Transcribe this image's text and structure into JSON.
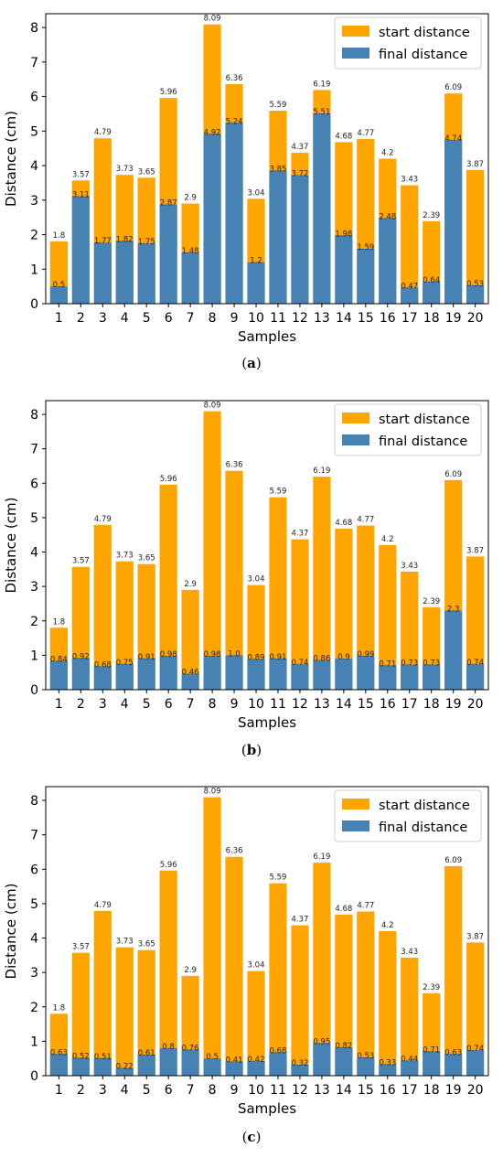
{
  "colors": {
    "start": "#FFA500",
    "final": "#4682B4"
  },
  "chart_data": [
    {
      "type": "bar",
      "caption": "a",
      "xlabel": "Samples",
      "ylabel": "Distance (cm)",
      "ylim": [
        0,
        8.4
      ],
      "yticks": [
        0,
        1,
        2,
        3,
        4,
        5,
        6,
        7,
        8
      ],
      "legend_position": "top-right",
      "categories": [
        "1",
        "2",
        "3",
        "4",
        "5",
        "6",
        "7",
        "8",
        "9",
        "10",
        "11",
        "12",
        "13",
        "14",
        "15",
        "16",
        "17",
        "18",
        "19",
        "20"
      ],
      "series": [
        {
          "name": "start distance",
          "values": [
            1.8,
            3.57,
            4.79,
            3.73,
            3.65,
            5.96,
            2.9,
            8.09,
            6.36,
            3.04,
            5.59,
            4.37,
            6.19,
            4.68,
            4.77,
            4.2,
            3.43,
            2.39,
            6.09,
            3.87
          ],
          "labels": [
            "1.8",
            "3.57",
            "4.79",
            "3.73",
            "3.65",
            "5.96",
            "2.9",
            "8.09",
            "6.36",
            "3.04",
            "5.59",
            "4.37",
            "6.19",
            "4.68",
            "4.77",
            "4.2",
            "3.43",
            "2.39",
            "6.09",
            "3.87"
          ]
        },
        {
          "name": "final distance",
          "values": [
            0.5,
            3.11,
            1.77,
            1.82,
            1.75,
            2.87,
            1.48,
            4.92,
            5.24,
            1.2,
            3.85,
            3.72,
            5.51,
            1.98,
            1.59,
            2.48,
            0.47,
            0.64,
            4.74,
            0.53
          ],
          "labels": [
            "0.5",
            "3.11",
            "1.77",
            "1.82",
            "1.75",
            "2.87",
            "1.48",
            "4.92",
            "5.24",
            "1.2",
            "3.85",
            "3.72",
            "5.51",
            "1.98",
            "1.59",
            "2.48",
            "0.47",
            "0.64",
            "4.74",
            "0.53"
          ]
        }
      ]
    },
    {
      "type": "bar",
      "caption": "b",
      "xlabel": "Samples",
      "ylabel": "Distance (cm)",
      "ylim": [
        0,
        8.4
      ],
      "yticks": [
        0,
        1,
        2,
        3,
        4,
        5,
        6,
        7,
        8
      ],
      "legend_position": "top-right",
      "categories": [
        "1",
        "2",
        "3",
        "4",
        "5",
        "6",
        "7",
        "8",
        "9",
        "10",
        "11",
        "12",
        "13",
        "14",
        "15",
        "16",
        "17",
        "18",
        "19",
        "20"
      ],
      "series": [
        {
          "name": "start distance",
          "values": [
            1.8,
            3.57,
            4.79,
            3.73,
            3.65,
            5.96,
            2.9,
            8.09,
            6.36,
            3.04,
            5.59,
            4.37,
            6.19,
            4.68,
            4.77,
            4.2,
            3.43,
            2.39,
            6.09,
            3.87
          ],
          "labels": [
            "1.8",
            "3.57",
            "4.79",
            "3.73",
            "3.65",
            "5.96",
            "2.9",
            "8.09",
            "6.36",
            "3.04",
            "5.59",
            "4.37",
            "6.19",
            "4.68",
            "4.77",
            "4.2",
            "3.43",
            "2.39",
            "6.09",
            "3.87"
          ]
        },
        {
          "name": "final distance",
          "values": [
            0.84,
            0.92,
            0.68,
            0.75,
            0.91,
            0.98,
            0.46,
            0.98,
            1.0,
            0.89,
            0.91,
            0.74,
            0.86,
            0.9,
            0.99,
            0.71,
            0.73,
            0.73,
            2.3,
            0.74
          ],
          "labels": [
            "0.84",
            "0.92",
            "0.68",
            "0.75",
            "0.91",
            "0.98",
            "0.46",
            "0.98",
            "1.0",
            "0.89",
            "0.91",
            "0.74",
            "0.86",
            "0.9",
            "0.99",
            "0.71",
            "0.73",
            "0.73",
            "2.3",
            "0.74"
          ]
        }
      ]
    },
    {
      "type": "bar",
      "caption": "c",
      "xlabel": "Samples",
      "ylabel": "Distance (cm)",
      "ylim": [
        0,
        8.4
      ],
      "yticks": [
        0,
        1,
        2,
        3,
        4,
        5,
        6,
        7,
        8
      ],
      "legend_position": "top-right",
      "categories": [
        "1",
        "2",
        "3",
        "4",
        "5",
        "6",
        "7",
        "8",
        "9",
        "10",
        "11",
        "12",
        "13",
        "14",
        "15",
        "16",
        "17",
        "18",
        "19",
        "20"
      ],
      "series": [
        {
          "name": "start distance",
          "values": [
            1.8,
            3.57,
            4.79,
            3.73,
            3.65,
            5.96,
            2.9,
            8.09,
            6.36,
            3.04,
            5.59,
            4.37,
            6.19,
            4.68,
            4.77,
            4.2,
            3.43,
            2.39,
            6.09,
            3.87
          ],
          "labels": [
            "1.8",
            "3.57",
            "4.79",
            "3.73",
            "3.65",
            "5.96",
            "2.9",
            "8.09",
            "6.36",
            "3.04",
            "5.59",
            "4.37",
            "6.19",
            "4.68",
            "4.77",
            "4.2",
            "3.43",
            "2.39",
            "6.09",
            "3.87"
          ]
        },
        {
          "name": "final distance",
          "values": [
            0.63,
            0.52,
            0.51,
            0.22,
            0.61,
            0.8,
            0.76,
            0.5,
            0.41,
            0.42,
            0.68,
            0.32,
            0.95,
            0.82,
            0.53,
            0.33,
            0.44,
            0.71,
            0.63,
            0.74
          ],
          "labels": [
            "0.63",
            "0.52",
            "0.51",
            "0.22",
            "0.61",
            "0.8",
            "0.76",
            "0.5",
            "0.41",
            "0.42",
            "0.68",
            "0.32",
            "0.95",
            "0.82",
            "0.53",
            "0.33",
            "0.44",
            "0.71",
            "0.63",
            "0.74"
          ]
        }
      ]
    }
  ]
}
